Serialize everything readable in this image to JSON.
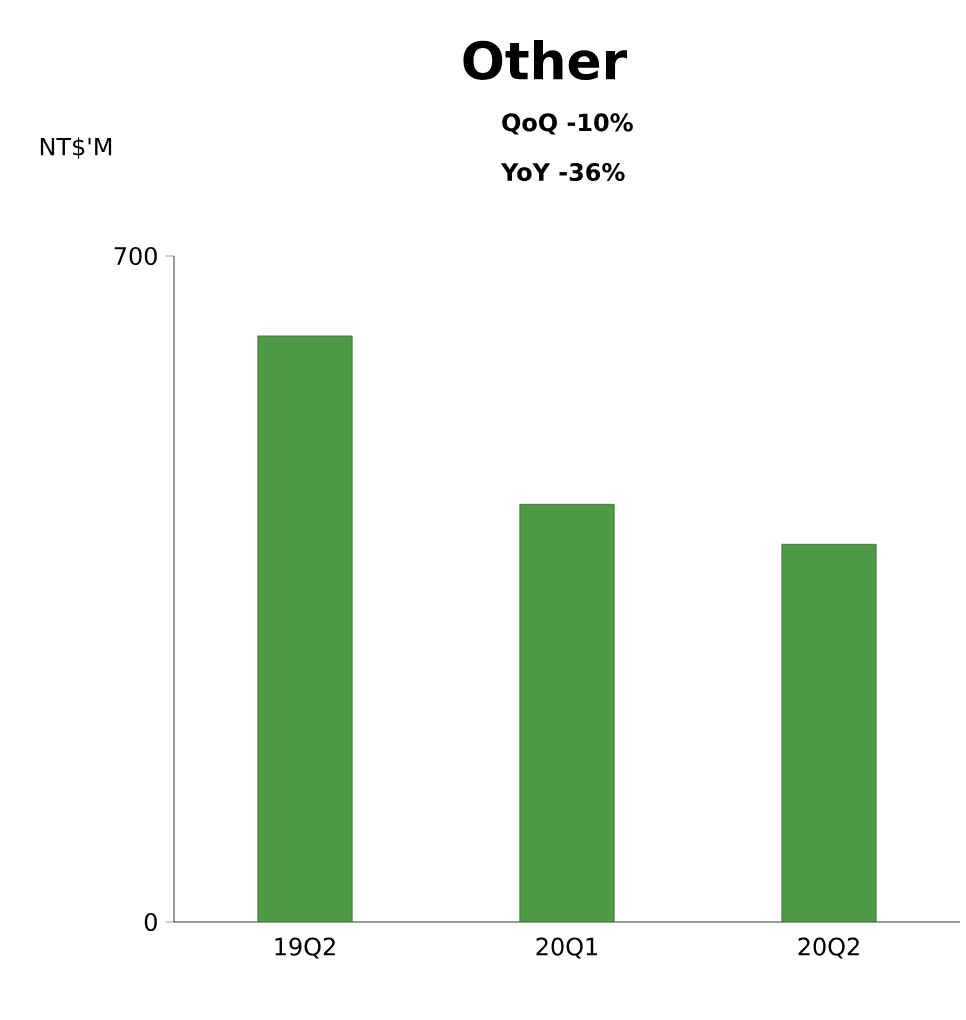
{
  "chart_data": {
    "type": "bar",
    "title": "Other",
    "ylabel": "NT$'M",
    "annotations": [
      "QoQ -10%",
      "YoY  -36%"
    ],
    "categories": [
      "19Q2",
      "20Q1",
      "20Q2"
    ],
    "values": [
      616,
      439,
      397
    ],
    "color": "#4e9a47",
    "ylim": [
      0,
      700
    ],
    "yticks": [
      0,
      700
    ]
  }
}
